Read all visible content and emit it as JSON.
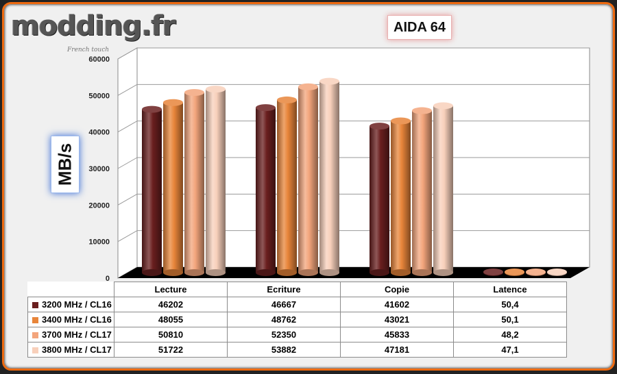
{
  "logo": {
    "text": "modding.fr",
    "tagline": "French touch"
  },
  "chart_data": {
    "type": "bar",
    "title": "AIDA 64",
    "ylabel": "MB/s",
    "xlabel": "",
    "ylim": [
      0,
      60000
    ],
    "yticks": [
      "60000",
      "50000",
      "40000",
      "30000",
      "20000",
      "10000",
      "0"
    ],
    "categories": [
      "Lecture",
      "Ecriture",
      "Copie",
      "Latence"
    ],
    "series": [
      {
        "name": "3200 MHz / CL16",
        "color": "#6a1f1f",
        "values": [
          46202,
          46667,
          41602,
          50.4
        ],
        "labels": [
          "46202",
          "46667",
          "41602",
          "50,4"
        ]
      },
      {
        "name": "3400 MHz / CL16",
        "color": "#e8853a",
        "values": [
          48055,
          48762,
          43021,
          50.1
        ],
        "labels": [
          "48055",
          "48762",
          "43021",
          "50,1"
        ]
      },
      {
        "name": "3700 MHz / CL17",
        "color": "#f3a57c",
        "values": [
          50810,
          52350,
          45833,
          48.2
        ],
        "labels": [
          "50810",
          "52350",
          "45833",
          "48,2"
        ]
      },
      {
        "name": "3800 MHz / CL17",
        "color": "#f8d0bb",
        "values": [
          51722,
          53882,
          47181,
          47.1
        ],
        "labels": [
          "51722",
          "53882",
          "47181",
          "47,1"
        ]
      }
    ],
    "grid": true,
    "legend": "data-table"
  }
}
